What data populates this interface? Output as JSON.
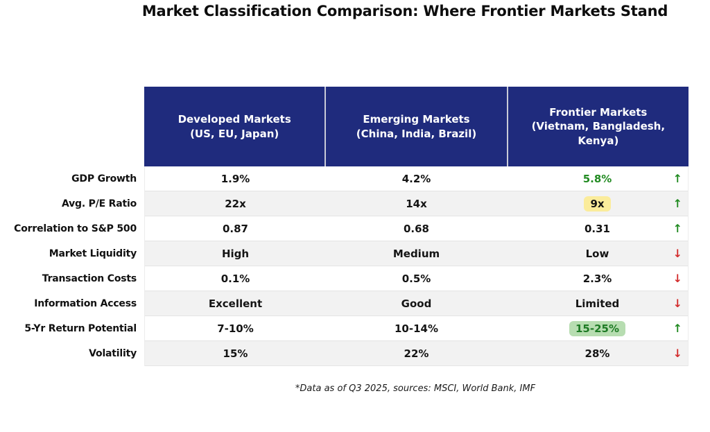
{
  "chart_data": {
    "type": "table",
    "title": "Market Classification Comparison: Where Frontier Markets Stand",
    "footnote": "*Data as of Q3 2025, sources: MSCI, World Bank, IMF",
    "columns": [
      {
        "key": "developed",
        "name": "Developed Markets (US, EU, Japan)",
        "lines": [
          "Developed Markets",
          "(US, EU, Japan)"
        ]
      },
      {
        "key": "emerging",
        "name": "Emerging Markets (China, India, Brazil)",
        "lines": [
          "Emerging Markets",
          "(China, India, Brazil)"
        ]
      },
      {
        "key": "frontier",
        "name": "Frontier Markets (Vietnam, Bangladesh, Kenya)",
        "lines": [
          "Frontier Markets",
          "(Vietnam, Bangladesh,",
          "Kenya)"
        ]
      }
    ],
    "rows": [
      {
        "label": "GDP Growth",
        "developed": "1.9%",
        "emerging": "4.2%",
        "frontier": "5.8%",
        "frontier_emphasis": "green-text",
        "trend": "up"
      },
      {
        "label": "Avg. P/E Ratio",
        "developed": "22x",
        "emerging": "14x",
        "frontier": "9x",
        "frontier_emphasis": "yellow-highlight",
        "trend": "up"
      },
      {
        "label": "Correlation to S&P 500",
        "developed": "0.87",
        "emerging": "0.68",
        "frontier": "0.31",
        "frontier_emphasis": "none",
        "trend": "up"
      },
      {
        "label": "Market Liquidity",
        "developed": "High",
        "emerging": "Medium",
        "frontier": "Low",
        "frontier_emphasis": "none",
        "trend": "down"
      },
      {
        "label": "Transaction Costs",
        "developed": "0.1%",
        "emerging": "0.5%",
        "frontier": "2.3%",
        "frontier_emphasis": "none",
        "trend": "down"
      },
      {
        "label": "Information Access",
        "developed": "Excellent",
        "emerging": "Good",
        "frontier": "Limited",
        "frontier_emphasis": "none",
        "trend": "down"
      },
      {
        "label": "5-Yr Return Potential",
        "developed": "7-10%",
        "emerging": "10-14%",
        "frontier": "15-25%",
        "frontier_emphasis": "green-highlight",
        "trend": "up"
      },
      {
        "label": "Volatility",
        "developed": "15%",
        "emerging": "22%",
        "frontier": "28%",
        "frontier_emphasis": "none",
        "trend": "down"
      }
    ],
    "trend_icons": {
      "up": "↑",
      "down": "↓"
    },
    "colors": {
      "header_bg": "#1f2b7d",
      "header_text": "#ffffff",
      "positive_green": "#228b22",
      "negative_red": "#d32f2f",
      "yellow_highlight_bg": "#fbec9b",
      "green_highlight_bg": "#b7ddb1",
      "green_highlight_text": "#1d7a24",
      "row_stripe": "#f2f2f2"
    },
    "layout": {
      "legend": "none",
      "grid": "horizontal-stripes"
    }
  }
}
